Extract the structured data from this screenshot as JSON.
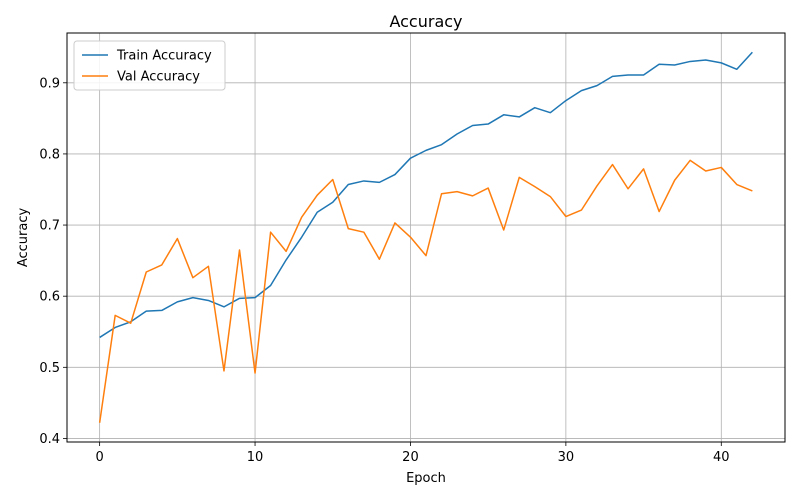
{
  "chart_data": {
    "type": "line",
    "title": "Accuracy",
    "xlabel": "Epoch",
    "ylabel": "Accuracy",
    "xlim": [
      -2.1,
      44.1
    ],
    "ylim": [
      0.395,
      0.97
    ],
    "xticks": [
      0,
      10,
      20,
      30,
      40
    ],
    "yticks": [
      0.4,
      0.5,
      0.6,
      0.7,
      0.8,
      0.9
    ],
    "ytick_labels": [
      "0.4",
      "0.5",
      "0.6",
      "0.7",
      "0.8",
      "0.9"
    ],
    "grid": true,
    "legend_position": "top-left",
    "x": [
      0,
      1,
      2,
      3,
      4,
      5,
      6,
      7,
      8,
      9,
      10,
      11,
      12,
      13,
      14,
      15,
      16,
      17,
      18,
      19,
      20,
      21,
      22,
      23,
      24,
      25,
      26,
      27,
      28,
      29,
      30,
      31,
      32,
      33,
      34,
      35,
      36,
      37,
      38,
      39,
      40,
      41,
      42
    ],
    "series": [
      {
        "name": "Train Accuracy",
        "color": "#1f77b4",
        "values": [
          0.542,
          0.556,
          0.564,
          0.579,
          0.58,
          0.592,
          0.598,
          0.594,
          0.585,
          0.597,
          0.598,
          0.615,
          0.651,
          0.683,
          0.718,
          0.732,
          0.757,
          0.762,
          0.76,
          0.771,
          0.794,
          0.805,
          0.813,
          0.828,
          0.84,
          0.842,
          0.855,
          0.852,
          0.865,
          0.858,
          0.875,
          0.889,
          0.896,
          0.909,
          0.911,
          0.911,
          0.926,
          0.925,
          0.93,
          0.932,
          0.928,
          0.919,
          0.943
        ]
      },
      {
        "name": "Val Accuracy",
        "color": "#ff7f0e",
        "values": [
          0.422,
          0.573,
          0.562,
          0.634,
          0.644,
          0.681,
          0.626,
          0.642,
          0.495,
          0.665,
          0.492,
          0.69,
          0.663,
          0.711,
          0.742,
          0.764,
          0.695,
          0.69,
          0.652,
          0.703,
          0.683,
          0.657,
          0.744,
          0.747,
          0.741,
          0.752,
          0.693,
          0.767,
          0.754,
          0.74,
          0.712,
          0.721,
          0.755,
          0.785,
          0.751,
          0.779,
          0.719,
          0.763,
          0.791,
          0.776,
          0.781,
          0.757,
          0.748
        ]
      }
    ]
  }
}
